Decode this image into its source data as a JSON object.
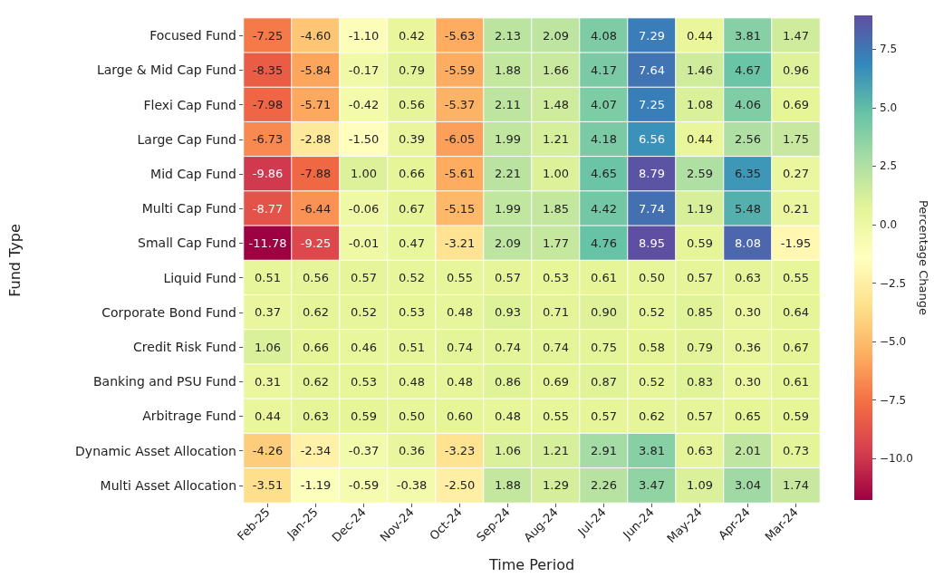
{
  "chart_data": {
    "type": "heatmap",
    "xlabel": "Time Period",
    "ylabel": "Fund Type",
    "clabel": "Percentage Change",
    "data_labels": true,
    "categories": [
      "Feb-25",
      "Jan-25",
      "Dec-24",
      "Nov-24",
      "Oct-24",
      "Sep-24",
      "Aug-24",
      "Jul-24",
      "Jun-24",
      "May-24",
      "Apr-24",
      "Mar-24"
    ],
    "y_categories": [
      "Focused Fund",
      "Large & Mid Cap Fund",
      "Flexi Cap Fund",
      "Large Cap Fund",
      "Mid Cap Fund",
      "Multi Cap Fund",
      "Small Cap Fund",
      "Liquid Fund",
      "Corporate Bond Fund",
      "Credit Risk Fund",
      "Banking and PSU Fund",
      "Arbitrage Fund",
      "Dynamic Asset Allocation",
      "Multi Asset Allocation"
    ],
    "cells": [
      [
        -7.25,
        -4.6,
        -1.1,
        0.42,
        -5.63,
        2.13,
        2.09,
        4.08,
        7.29,
        0.44,
        3.81,
        1.47
      ],
      [
        -8.35,
        -5.84,
        -0.17,
        0.79,
        -5.59,
        1.88,
        1.66,
        4.17,
        7.64,
        1.46,
        4.67,
        0.96
      ],
      [
        -7.98,
        -5.71,
        -0.42,
        0.56,
        -5.37,
        2.11,
        1.48,
        4.07,
        7.25,
        1.08,
        4.06,
        0.69
      ],
      [
        -6.73,
        -2.88,
        -1.5,
        0.39,
        -6.05,
        1.99,
        1.21,
        4.18,
        6.56,
        0.44,
        2.56,
        1.75
      ],
      [
        -9.86,
        -7.88,
        1.0,
        0.66,
        -5.61,
        2.21,
        1.0,
        4.65,
        8.79,
        2.59,
        6.35,
        0.27
      ],
      [
        -8.77,
        -6.44,
        -0.06,
        0.67,
        -5.15,
        1.99,
        1.85,
        4.42,
        7.74,
        1.19,
        5.48,
        0.21
      ],
      [
        -11.78,
        -9.25,
        -0.01,
        0.47,
        -3.21,
        2.09,
        1.77,
        4.76,
        8.95,
        0.59,
        8.08,
        -1.95
      ],
      [
        0.51,
        0.56,
        0.57,
        0.52,
        0.55,
        0.57,
        0.53,
        0.61,
        0.5,
        0.57,
        0.63,
        0.55
      ],
      [
        0.37,
        0.62,
        0.52,
        0.53,
        0.48,
        0.93,
        0.71,
        0.9,
        0.52,
        0.85,
        0.3,
        0.64
      ],
      [
        1.06,
        0.66,
        0.46,
        0.51,
        0.74,
        0.74,
        0.74,
        0.75,
        0.58,
        0.79,
        0.36,
        0.67
      ],
      [
        0.31,
        0.62,
        0.53,
        0.48,
        0.48,
        0.86,
        0.69,
        0.87,
        0.52,
        0.83,
        0.3,
        0.61
      ],
      [
        0.44,
        0.63,
        0.59,
        0.5,
        0.6,
        0.48,
        0.55,
        0.57,
        0.62,
        0.57,
        0.65,
        0.59
      ],
      [
        -4.26,
        -2.34,
        -0.37,
        0.36,
        -3.23,
        1.06,
        1.21,
        2.91,
        3.81,
        0.63,
        2.01,
        0.73
      ],
      [
        -3.51,
        -1.19,
        -0.59,
        -0.38,
        -2.5,
        1.88,
        1.29,
        2.26,
        3.47,
        1.09,
        3.04,
        1.74
      ]
    ],
    "clim": [
      -11.78,
      8.95
    ],
    "cticks": [
      {
        "value": -10,
        "label": "−10.0"
      },
      {
        "value": -7.5,
        "label": "−7.5"
      },
      {
        "value": -5,
        "label": "−5.0"
      },
      {
        "value": -2.5,
        "label": "−2.5"
      },
      {
        "value": 0,
        "label": "0.0"
      },
      {
        "value": 2.5,
        "label": "2.5"
      },
      {
        "value": 5,
        "label": "5.0"
      },
      {
        "value": 7.5,
        "label": "7.5"
      }
    ],
    "cell_labels": [
      [
        "-7.25",
        "-4.60",
        "-1.10",
        "0.42",
        "-5.63",
        "2.13",
        "2.09",
        "4.08",
        "7.29",
        "0.44",
        "3.81",
        "1.47"
      ],
      [
        "-8.35",
        "-5.84",
        "-0.17",
        "0.79",
        "-5.59",
        "1.88",
        "1.66",
        "4.17",
        "7.64",
        "1.46",
        "4.67",
        "0.96"
      ],
      [
        "-7.98",
        "-5.71",
        "-0.42",
        "0.56",
        "-5.37",
        "2.11",
        "1.48",
        "4.07",
        "7.25",
        "1.08",
        "4.06",
        "0.69"
      ],
      [
        "-6.73",
        "-2.88",
        "-1.50",
        "0.39",
        "-6.05",
        "1.99",
        "1.21",
        "4.18",
        "6.56",
        "0.44",
        "2.56",
        "1.75"
      ],
      [
        "-9.86",
        "-7.88",
        "1.00",
        "0.66",
        "-5.61",
        "2.21",
        "1.00",
        "4.65",
        "8.79",
        "2.59",
        "6.35",
        "0.27"
      ],
      [
        "-8.77",
        "-6.44",
        "-0.06",
        "0.67",
        "-5.15",
        "1.99",
        "1.85",
        "4.42",
        "7.74",
        "1.19",
        "5.48",
        "0.21"
      ],
      [
        "-11.78",
        "-9.25",
        "-0.01",
        "0.47",
        "-3.21",
        "2.09",
        "1.77",
        "4.76",
        "8.95",
        "0.59",
        "8.08",
        "-1.95"
      ],
      [
        "0.51",
        "0.56",
        "0.57",
        "0.52",
        "0.55",
        "0.57",
        "0.53",
        "0.61",
        "0.50",
        "0.57",
        "0.63",
        "0.55"
      ],
      [
        "0.37",
        "0.62",
        "0.52",
        "0.53",
        "0.48",
        "0.93",
        "0.71",
        "0.90",
        "0.52",
        "0.85",
        "0.30",
        "0.64"
      ],
      [
        "1.06",
        "0.66",
        "0.46",
        "0.51",
        "0.74",
        "0.74",
        "0.74",
        "0.75",
        "0.58",
        "0.79",
        "0.36",
        "0.67"
      ],
      [
        "0.31",
        "0.62",
        "0.53",
        "0.48",
        "0.48",
        "0.86",
        "0.69",
        "0.87",
        "0.52",
        "0.83",
        "0.30",
        "0.61"
      ],
      [
        "0.44",
        "0.63",
        "0.59",
        "0.50",
        "0.60",
        "0.48",
        "0.55",
        "0.57",
        "0.62",
        "0.57",
        "0.65",
        "0.59"
      ],
      [
        "-4.26",
        "-2.34",
        "-0.37",
        "0.36",
        "-3.23",
        "1.06",
        "1.21",
        "2.91",
        "3.81",
        "0.63",
        "2.01",
        "0.73"
      ],
      [
        "-3.51",
        "-1.19",
        "-0.59",
        "-0.38",
        "-2.50",
        "1.88",
        "1.29",
        "2.26",
        "3.47",
        "1.09",
        "3.04",
        "1.74"
      ]
    ]
  }
}
